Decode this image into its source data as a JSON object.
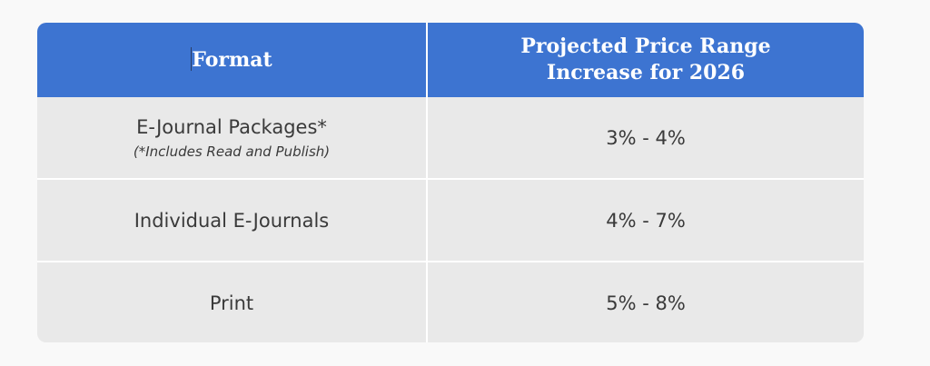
{
  "table": {
    "headers": [
      "Format",
      "Projected Price Range\nIncrease for 2026"
    ],
    "header_line1": "Projected Price Range",
    "header_line2": "Increase for 2026",
    "rows": [
      {
        "format": "E-Journal Packages*",
        "note": "(*Includes Read and Publish)",
        "range": "3% - 4%"
      },
      {
        "format": "Individual E-Journals",
        "range": "4% - 7%"
      },
      {
        "format": "Print",
        "range": "5% - 8%"
      }
    ]
  },
  "colors": {
    "header_bg": "#3d74d1",
    "header_text": "#ffffff",
    "row_bg": "#e9e9e9",
    "row_text": "#3a3a3a",
    "page_bg": "#f9f9f9"
  }
}
